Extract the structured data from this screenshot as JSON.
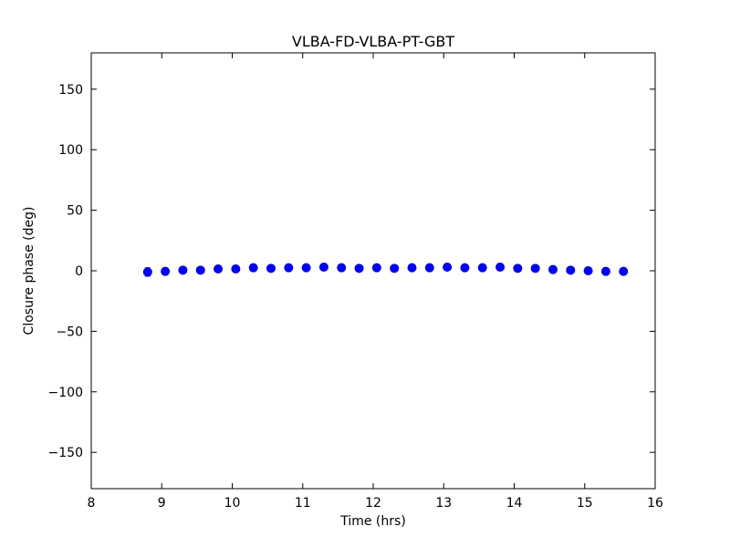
{
  "figure": {
    "background": "#ffffff"
  },
  "chart_data": {
    "type": "scatter",
    "title": "VLBA-FD-VLBA-PT-GBT",
    "xlabel": "Time (hrs)",
    "ylabel": "Closure phase (deg)",
    "xlim": [
      8,
      16
    ],
    "ylim": [
      -180,
      180
    ],
    "xticks": [
      8,
      9,
      10,
      11,
      12,
      13,
      14,
      15,
      16
    ],
    "xtick_labels": [
      "8",
      "9",
      "10",
      "11",
      "12",
      "13",
      "14",
      "15",
      "16"
    ],
    "yticks": [
      -150,
      -100,
      -50,
      0,
      50,
      100,
      150
    ],
    "ytick_labels": [
      "−150",
      "−100",
      "−50",
      "0",
      "50",
      "100",
      "150"
    ],
    "grid": false,
    "marker": "circle",
    "marker_color": "#0000ff",
    "marker_edge_color": "#0000cc",
    "errorbar_color": "#0000ff",
    "axis_color": "#000000",
    "series": [
      {
        "name": "closure-phase",
        "x": [
          8.8,
          9.05,
          9.3,
          9.55,
          9.8,
          10.05,
          10.3,
          10.55,
          10.8,
          11.05,
          11.3,
          11.55,
          11.8,
          12.05,
          12.3,
          12.55,
          12.8,
          13.05,
          13.3,
          13.55,
          13.8,
          14.05,
          14.3,
          14.55,
          14.8,
          15.05,
          15.3,
          15.55
        ],
        "y": [
          -1.0,
          -0.5,
          0.5,
          0.5,
          1.5,
          1.5,
          2.5,
          2.0,
          2.5,
          2.5,
          3.0,
          2.5,
          2.0,
          2.5,
          2.0,
          2.5,
          2.5,
          3.0,
          2.5,
          2.5,
          3.0,
          2.0,
          2.0,
          1.0,
          0.5,
          0.0,
          -0.5,
          -0.5
        ],
        "yerr": [
          3.5,
          1.0,
          1.0,
          1.0,
          1.0,
          1.0,
          1.0,
          1.0,
          1.0,
          1.0,
          1.0,
          1.0,
          1.0,
          1.0,
          1.0,
          1.0,
          1.0,
          1.0,
          1.0,
          1.0,
          1.0,
          1.0,
          1.0,
          1.0,
          1.0,
          1.0,
          1.0,
          1.0
        ]
      }
    ]
  }
}
